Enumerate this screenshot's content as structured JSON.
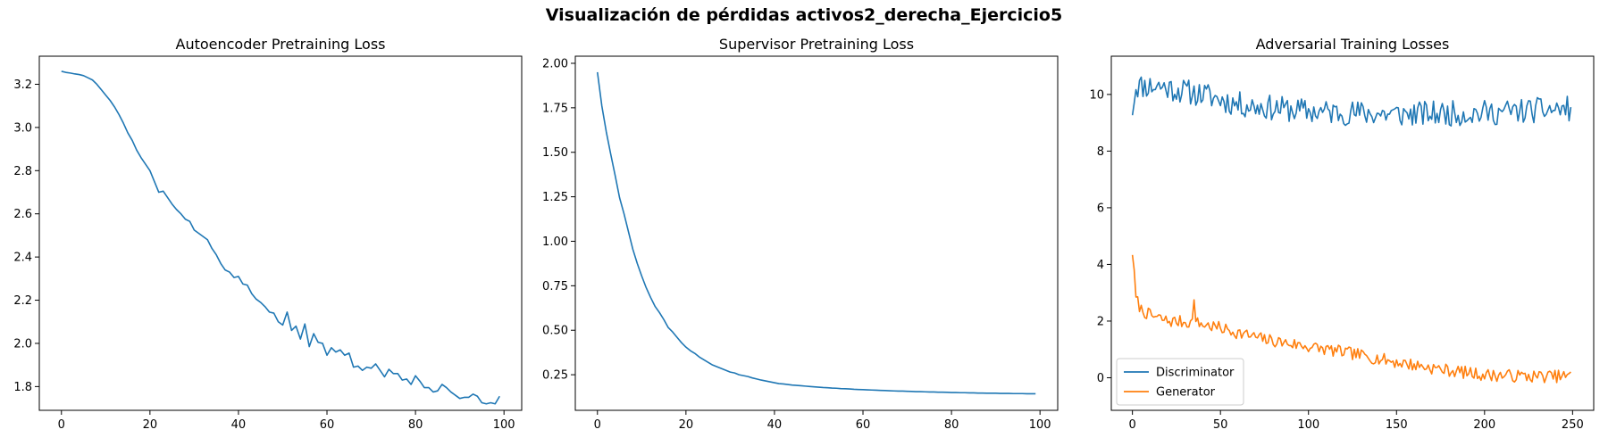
{
  "figure": {
    "title": "Visualización de pérdidas activos2_derecha_Ejercicio5"
  },
  "colors": {
    "blue": "#1f77b4",
    "orange": "#ff7f0e"
  },
  "chart_data": [
    {
      "type": "line",
      "title": "Autoencoder Pretraining Loss",
      "xlim": [
        -5,
        104
      ],
      "ylim": [
        1.69,
        3.33
      ],
      "xticks": [
        0,
        20,
        40,
        60,
        80,
        100
      ],
      "yticks": [
        1.8,
        2.0,
        2.2,
        2.4,
        2.6,
        2.8,
        3.0,
        3.2
      ],
      "ytick_decimals": 1,
      "series": [
        {
          "color": "#1f77b4",
          "values": [
            3.26,
            3.255,
            3.252,
            3.248,
            3.245,
            3.24,
            3.23,
            3.22,
            3.2,
            3.175,
            3.15,
            3.125,
            3.095,
            3.06,
            3.02,
            2.975,
            2.94,
            2.895,
            2.86,
            2.83,
            2.8,
            2.75,
            2.7,
            2.705,
            2.675,
            2.645,
            2.62,
            2.6,
            2.575,
            2.565,
            2.525,
            2.51,
            2.495,
            2.48,
            2.44,
            2.41,
            2.37,
            2.34,
            2.33,
            2.305,
            2.31,
            2.275,
            2.27,
            2.23,
            2.205,
            2.19,
            2.17,
            2.145,
            2.14,
            2.1,
            2.085,
            2.145,
            2.06,
            2.08,
            2.02,
            2.09,
            1.985,
            2.045,
            2.005,
            2.0,
            1.945,
            1.98,
            1.96,
            1.97,
            1.945,
            1.955,
            1.89,
            1.895,
            1.875,
            1.89,
            1.885,
            1.905,
            1.875,
            1.845,
            1.88,
            1.86,
            1.86,
            1.83,
            1.835,
            1.81,
            1.85,
            1.825,
            1.795,
            1.795,
            1.775,
            1.78,
            1.81,
            1.795,
            1.775,
            1.76,
            1.745,
            1.75,
            1.75,
            1.765,
            1.755,
            1.725,
            1.72,
            1.725,
            1.72,
            1.755
          ]
        }
      ]
    },
    {
      "type": "line",
      "title": "Supervisor Pretraining Loss",
      "xlim": [
        -5,
        104
      ],
      "ylim": [
        0.05,
        2.04
      ],
      "xticks": [
        0,
        20,
        40,
        60,
        80,
        100
      ],
      "yticks": [
        0.25,
        0.5,
        0.75,
        1.0,
        1.25,
        1.5,
        1.75,
        2.0
      ],
      "ytick_decimals": 2,
      "series": [
        {
          "color": "#1f77b4",
          "values": [
            1.95,
            1.76,
            1.615,
            1.49,
            1.37,
            1.245,
            1.155,
            1.055,
            0.955,
            0.875,
            0.805,
            0.74,
            0.685,
            0.635,
            0.6,
            0.56,
            0.515,
            0.49,
            0.46,
            0.43,
            0.405,
            0.385,
            0.37,
            0.35,
            0.335,
            0.32,
            0.305,
            0.295,
            0.285,
            0.275,
            0.265,
            0.26,
            0.25,
            0.245,
            0.24,
            0.232,
            0.226,
            0.22,
            0.215,
            0.21,
            0.205,
            0.2,
            0.198,
            0.195,
            0.192,
            0.19,
            0.188,
            0.186,
            0.184,
            0.182,
            0.18,
            0.178,
            0.177,
            0.175,
            0.174,
            0.172,
            0.171,
            0.17,
            0.168,
            0.167,
            0.166,
            0.165,
            0.164,
            0.163,
            0.162,
            0.161,
            0.16,
            0.159,
            0.158,
            0.158,
            0.157,
            0.156,
            0.155,
            0.155,
            0.154,
            0.153,
            0.153,
            0.152,
            0.152,
            0.151,
            0.15,
            0.15,
            0.149,
            0.149,
            0.148,
            0.148,
            0.147,
            0.147,
            0.146,
            0.146,
            0.146,
            0.145,
            0.145,
            0.145,
            0.144,
            0.144,
            0.144,
            0.143,
            0.143,
            0.143
          ]
        }
      ]
    },
    {
      "type": "line",
      "title": "Adversarial Training Losses",
      "xlim": [
        -12,
        262
      ],
      "ylim": [
        -1.15,
        11.35
      ],
      "xticks": [
        0,
        50,
        100,
        150,
        200,
        250
      ],
      "yticks": [
        0,
        2,
        4,
        6,
        8,
        10
      ],
      "ytick_decimals": 0,
      "legend": "lower-left",
      "series": [
        {
          "name": "Discriminator",
          "color": "#1f77b4",
          "base": [
            [
              0,
              9.5
            ],
            [
              2,
              10.3
            ],
            [
              15,
              10.3
            ],
            [
              30,
              10.1
            ],
            [
              40,
              10.0
            ],
            [
              60,
              9.65
            ],
            [
              100,
              9.4
            ],
            [
              150,
              9.3
            ],
            [
              200,
              9.35
            ],
            [
              250,
              9.5
            ]
          ],
          "amp": 0.45,
          "seed": 11
        },
        {
          "name": "Generator",
          "color": "#ff7f0e",
          "base": [
            [
              0,
              4.45
            ],
            [
              2,
              2.8
            ],
            [
              5,
              2.4
            ],
            [
              10,
              2.2
            ],
            [
              20,
              2.0
            ],
            [
              35,
              1.95
            ],
            [
              50,
              1.75
            ],
            [
              75,
              1.35
            ],
            [
              100,
              1.1
            ],
            [
              125,
              0.85
            ],
            [
              150,
              0.55
            ],
            [
              175,
              0.3
            ],
            [
              200,
              0.1
            ],
            [
              225,
              0.05
            ],
            [
              250,
              0.05
            ]
          ],
          "amp": 0.22,
          "seed": 7
        }
      ]
    }
  ]
}
